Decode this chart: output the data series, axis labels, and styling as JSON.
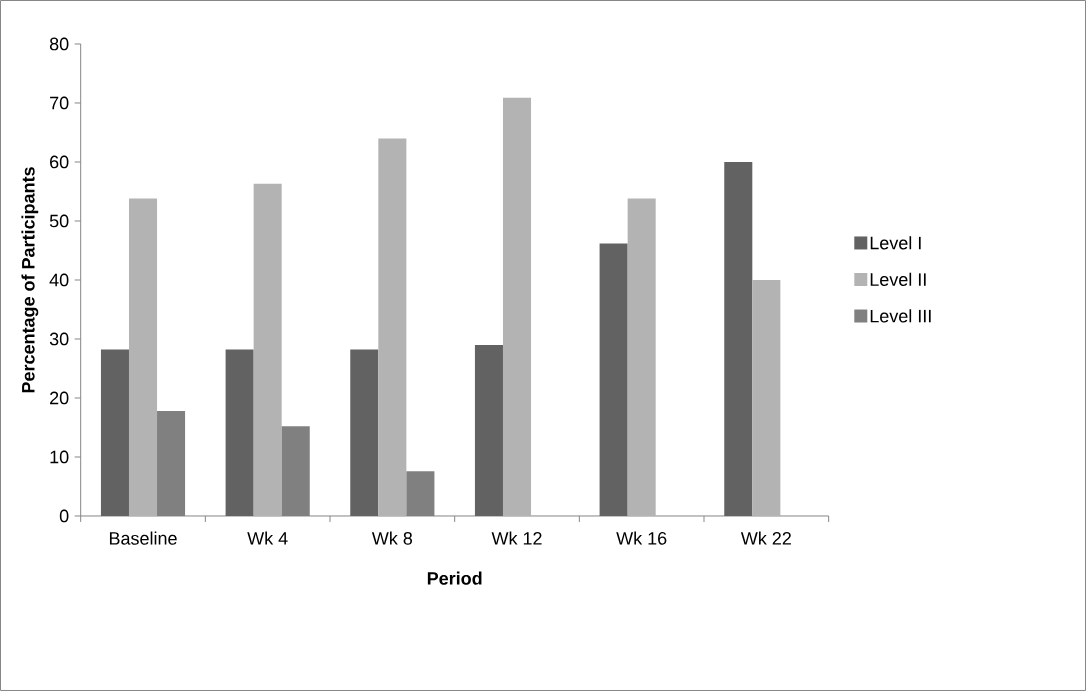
{
  "chart_data": {
    "type": "bar",
    "xlabel": "Period",
    "ylabel": "Percentage of Participants",
    "categories": [
      "Baseline",
      "Wk 4",
      "Wk 8",
      "Wk 12",
      "Wk 16",
      "Wk 22"
    ],
    "series": [
      {
        "name": "Level I",
        "color": "#626262",
        "values": [
          28.2,
          28.2,
          28.2,
          29.0,
          46.2,
          60.0
        ]
      },
      {
        "name": "Level II",
        "color": "#b3b3b3",
        "values": [
          53.8,
          56.3,
          64.0,
          70.9,
          53.8,
          40.0
        ]
      },
      {
        "name": "Level III",
        "color": "#808080",
        "values": [
          17.8,
          15.2,
          7.6,
          null,
          null,
          null
        ]
      }
    ],
    "ylim": [
      0,
      80
    ],
    "yticks": [
      0,
      10,
      20,
      30,
      40,
      50,
      60,
      70,
      80
    ],
    "grid": false,
    "legend": "right"
  }
}
